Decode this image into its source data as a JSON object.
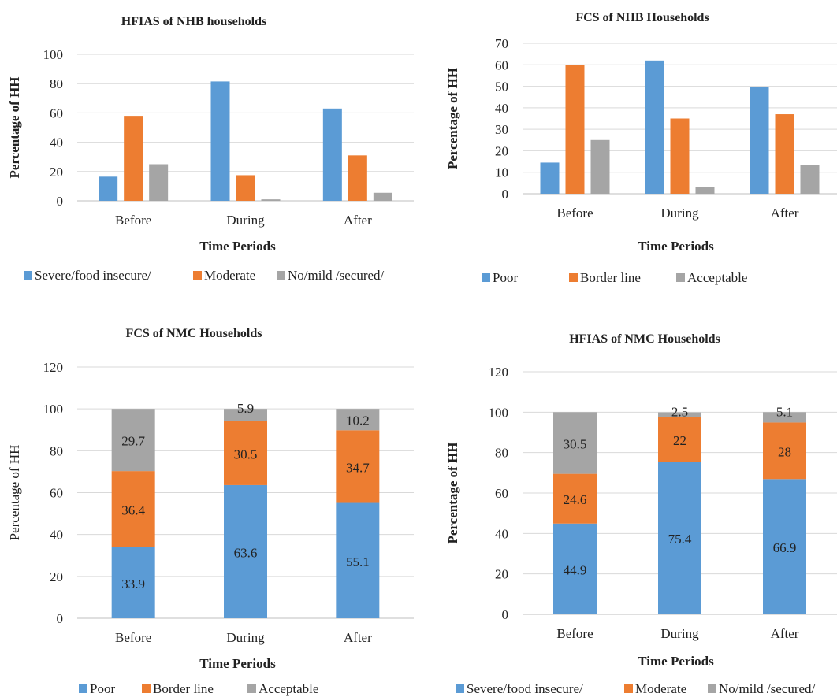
{
  "colors": {
    "blue": "#5b9bd5",
    "orange": "#ed7d31",
    "gray": "#a5a5a5",
    "grid": "#d9d9d9",
    "text": "#222222"
  },
  "chart_data": [
    {
      "type": "bar",
      "title": "HFIAS of NHB households",
      "xlabel": "Time Periods",
      "ylabel": "Percentage of HH",
      "categories": [
        "Before",
        "During",
        "After"
      ],
      "ylim": [
        0,
        100
      ],
      "yticks": [
        0,
        20,
        40,
        60,
        80,
        100
      ],
      "grid": true,
      "legend_position": "bottom",
      "series": [
        {
          "name": "Severe/food insecure/",
          "color": "#5b9bd5",
          "values": [
            16.5,
            81.5,
            63
          ]
        },
        {
          "name": "Moderate",
          "color": "#ed7d31",
          "values": [
            58,
            17.5,
            31
          ]
        },
        {
          "name": "No/mild /secured/",
          "color": "#a5a5a5",
          "values": [
            25,
            1,
            5.5
          ]
        }
      ]
    },
    {
      "type": "bar",
      "title": "FCS of NHB Households",
      "xlabel": "Time Periods",
      "ylabel": "Percentage of HH",
      "categories": [
        "Before",
        "During",
        "After"
      ],
      "ylim": [
        0,
        70
      ],
      "yticks": [
        0,
        10,
        20,
        30,
        40,
        50,
        60,
        70
      ],
      "grid": true,
      "legend_position": "bottom",
      "series": [
        {
          "name": "Poor",
          "color": "#5b9bd5",
          "values": [
            14.5,
            62,
            49.5
          ]
        },
        {
          "name": "Border line",
          "color": "#ed7d31",
          "values": [
            60,
            35,
            37
          ]
        },
        {
          "name": "Acceptable",
          "color": "#a5a5a5",
          "values": [
            25,
            3,
            13.5
          ]
        }
      ]
    },
    {
      "type": "stacked-bar",
      "title": "FCS of NMC Households",
      "xlabel": "Time Periods",
      "ylabel": "Percentage of HH",
      "categories": [
        "Before",
        "During",
        "After"
      ],
      "ylim": [
        0,
        120
      ],
      "yticks": [
        0,
        20,
        40,
        60,
        80,
        100,
        120
      ],
      "grid": true,
      "legend_position": "bottom",
      "series": [
        {
          "name": "Poor",
          "color": "#5b9bd5",
          "values": [
            33.9,
            63.6,
            55.1
          ],
          "labels": [
            "33.9",
            "63.6",
            "55.1"
          ]
        },
        {
          "name": "Border line",
          "color": "#ed7d31",
          "values": [
            36.4,
            30.5,
            34.7
          ],
          "labels": [
            "36.4",
            "30.5",
            "34.7"
          ]
        },
        {
          "name": "Acceptable",
          "color": "#a5a5a5",
          "values": [
            29.7,
            5.9,
            10.2
          ],
          "labels": [
            "29.7",
            "5.9",
            "10.2"
          ]
        }
      ]
    },
    {
      "type": "stacked-bar",
      "title": "HFIAS of NMC Households",
      "xlabel": "Time Periods",
      "ylabel": "Percentage of HH",
      "categories": [
        "Before",
        "During",
        "After"
      ],
      "ylim": [
        0,
        120
      ],
      "yticks": [
        0,
        20,
        40,
        60,
        80,
        100,
        120
      ],
      "grid": true,
      "legend_position": "bottom",
      "series": [
        {
          "name": "Severe/food insecure/",
          "color": "#5b9bd5",
          "values": [
            44.9,
            75.4,
            66.9
          ],
          "labels": [
            "44.9",
            "75.4",
            "66.9"
          ]
        },
        {
          "name": "Moderate",
          "color": "#ed7d31",
          "values": [
            24.6,
            22,
            28
          ],
          "labels": [
            "24.6",
            "22",
            "28"
          ]
        },
        {
          "name": "No/mild /secured/",
          "color": "#a5a5a5",
          "values": [
            30.5,
            2.5,
            5.1
          ],
          "labels": [
            "30.5",
            "2.5",
            "5.1"
          ]
        }
      ]
    }
  ]
}
